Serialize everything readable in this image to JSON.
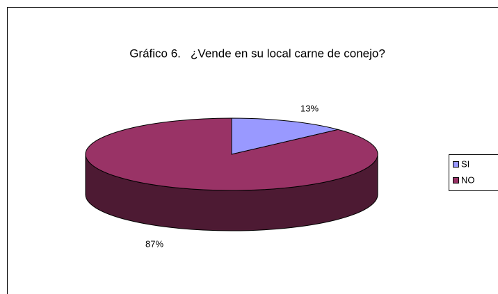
{
  "chart_data": {
    "type": "pie",
    "title": "Gráfico 6.   ¿Vende en su local carne de conejo?",
    "categories": [
      "SI",
      "NO"
    ],
    "values": [
      13,
      87
    ],
    "value_labels": [
      "13%",
      "87%"
    ],
    "colors": [
      "#9999ff",
      "#993366"
    ],
    "legend": "right"
  }
}
